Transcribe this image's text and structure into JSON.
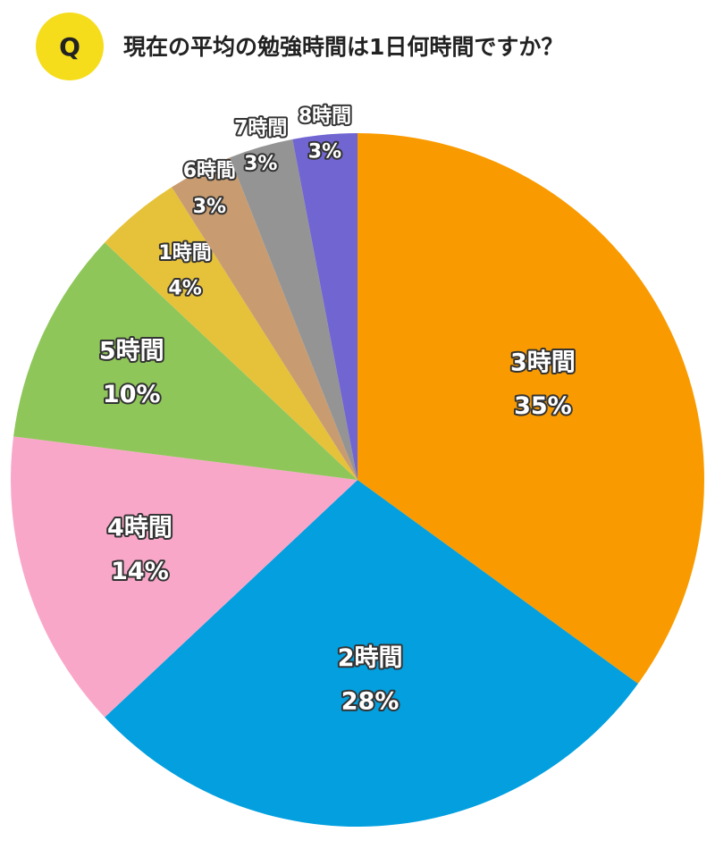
{
  "chart_data": {
    "type": "pie",
    "badge": "Q",
    "title": "現在の平均の勉強時間は1日何時間ですか？",
    "categories": [
      "3時間",
      "2時間",
      "4時間",
      "5時間",
      "1時間",
      "6時間",
      "7時間",
      "8時間"
    ],
    "values": [
      35,
      28,
      14,
      10,
      4,
      3,
      3,
      3
    ],
    "value_labels": [
      "35%",
      "28%",
      "14%",
      "10%",
      "4%",
      "3%",
      "3%",
      "3%"
    ],
    "colors": [
      "#f99b00",
      "#039fdf",
      "#f9a7c9",
      "#8fc65a",
      "#e6c23a",
      "#c89c70",
      "#949494",
      "#7165d2"
    ]
  }
}
